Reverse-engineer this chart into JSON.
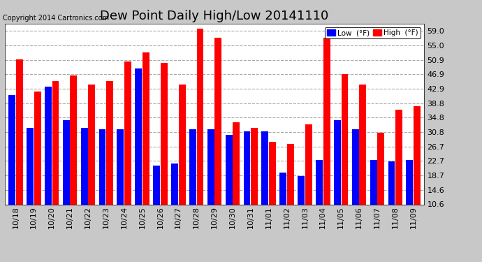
{
  "title": "Dew Point Daily High/Low 20141110",
  "copyright": "Copyright 2014 Cartronics.com",
  "legend_low": "Low  (°F)",
  "legend_high": "High  (°F)",
  "categories": [
    "10/18",
    "10/19",
    "10/20",
    "10/21",
    "10/22",
    "10/23",
    "10/24",
    "10/25",
    "10/26",
    "10/27",
    "10/28",
    "10/29",
    "10/30",
    "10/31",
    "11/01",
    "11/02",
    "11/03",
    "11/04",
    "11/05",
    "11/06",
    "11/07",
    "11/08",
    "11/09"
  ],
  "high": [
    51.0,
    42.0,
    45.0,
    46.5,
    44.0,
    45.0,
    50.5,
    53.0,
    50.0,
    44.0,
    59.5,
    57.0,
    33.5,
    32.0,
    28.0,
    27.5,
    33.0,
    57.0,
    47.0,
    44.0,
    30.5,
    37.0,
    38.0
  ],
  "low": [
    41.0,
    32.0,
    43.5,
    34.0,
    32.0,
    31.5,
    31.5,
    48.5,
    21.5,
    22.0,
    31.5,
    31.5,
    30.0,
    31.0,
    31.0,
    19.5,
    18.5,
    23.0,
    34.0,
    31.5,
    23.0,
    22.5,
    23.0
  ],
  "ylim_min": 10.6,
  "ylim_max": 61.0,
  "yticks": [
    10.6,
    14.6,
    18.7,
    22.7,
    26.7,
    30.8,
    34.8,
    38.8,
    42.9,
    46.9,
    50.9,
    55.0,
    59.0
  ],
  "bar_color_high": "#ff0000",
  "bar_color_low": "#0000ff",
  "outer_bg_color": "#c8c8c8",
  "plot_bg_color": "#ffffff",
  "grid_color": "#aaaaaa",
  "title_fontsize": 13,
  "tick_fontsize": 8,
  "copyright_fontsize": 7
}
